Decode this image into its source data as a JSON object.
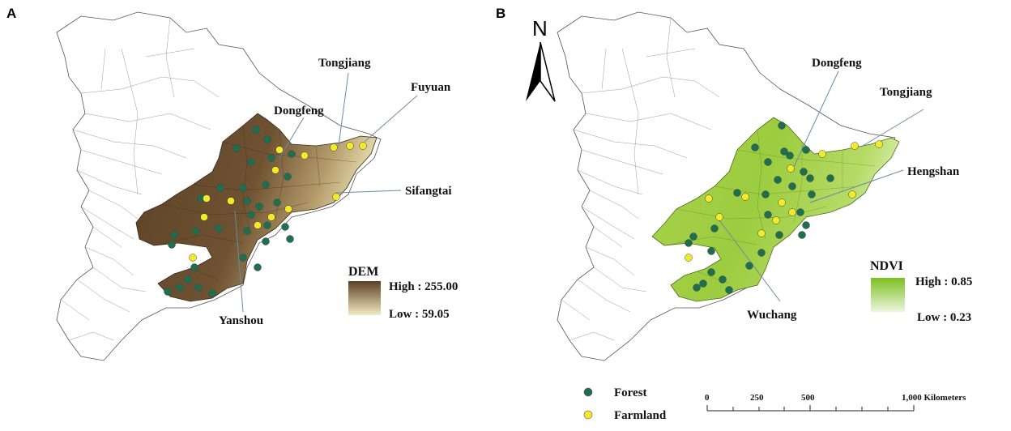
{
  "panels": [
    {
      "id": "A",
      "letter": "A",
      "legend": {
        "title": "DEM",
        "high": "High : 255.00",
        "low": "Low : 59.05"
      },
      "sites": [
        "Tongjiang",
        "Fuyuan",
        "Dongfeng",
        "Sifangtai",
        "Yanshou"
      ]
    },
    {
      "id": "B",
      "letter": "B",
      "legend": {
        "title": "NDVI",
        "high": "High : 0.85",
        "low": "Low : 0.23"
      },
      "sites": [
        "Dongfeng",
        "Tongjiang",
        "Hengshan",
        "Wuchang"
      ]
    }
  ],
  "north_arrow": {
    "label": "N"
  },
  "point_legend": [
    {
      "label": "Forest",
      "color": "#1f6e4e"
    },
    {
      "label": "Farmland",
      "color": "#f2ea2a"
    }
  ],
  "scale_bar": {
    "ticks": [
      "0",
      "250",
      "500",
      "1,000 Kilometers"
    ]
  },
  "colors": {
    "dem_high": "#5a3f22",
    "dem_low": "#f3ecc2",
    "ndvi_high": "#7cbf22",
    "ndvi_low": "#eef6dc",
    "forest": "#1f6e4e",
    "farmland": "#f2ea2a"
  }
}
